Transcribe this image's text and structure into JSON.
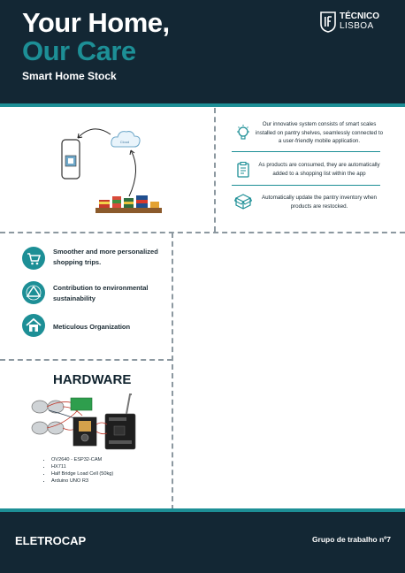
{
  "header": {
    "title_line1": "Your Home,",
    "title_line2": "Our Care",
    "subtitle": "Smart Home Stock"
  },
  "logo": {
    "line1": "TÉCNICO",
    "line2": "LISBOA",
    "icon": "ist-logo-icon"
  },
  "diagram": {
    "cloud_label": "Cloud"
  },
  "features": [
    {
      "icon": "lightbulb-icon",
      "text": "Our innovative system consists of smart scales installed on pantry shelves, seamlessly connected to a user-friendly mobile application."
    },
    {
      "icon": "clipboard-list-icon",
      "text": "As products are consumed, they are automatically added to a shopping list within the app"
    },
    {
      "icon": "box-update-icon",
      "text": "Automatically update the pantry inventory when products are restocked."
    }
  ],
  "benefits": [
    {
      "icon": "shopping-cart-icon",
      "text": "Smoother and more personalized shopping trips."
    },
    {
      "icon": "recycle-icon",
      "text": "Contribution to environmental sustainability"
    },
    {
      "icon": "home-icon",
      "text": "Meticulous Organization"
    }
  ],
  "hardware": {
    "title": "HARDWARE",
    "items": [
      "OV2640 - ESP32-CAM",
      "HX711",
      "Half Bridge Load Cell (50kg)",
      "Arduino UNO R3"
    ]
  },
  "footer": {
    "left": "ELETROCAP",
    "right": "Grupo de trabalho nº7"
  },
  "colors": {
    "navy": "#132734",
    "teal": "#1d8f96"
  }
}
